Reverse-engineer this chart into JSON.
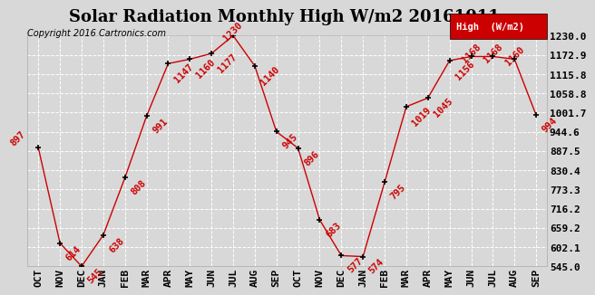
{
  "title": "Solar Radiation Monthly High W/m2 20161011",
  "copyright": "Copyright 2016 Cartronics.com",
  "months": [
    "OCT",
    "NOV",
    "DEC",
    "JAN",
    "FEB",
    "MAR",
    "APR",
    "MAY",
    "JUN",
    "JUL",
    "AUG",
    "SEP",
    "OCT",
    "NOV",
    "DEC",
    "JAN",
    "FEB",
    "MAR",
    "APR",
    "MAY",
    "JUN",
    "JUL",
    "AUG",
    "SEP"
  ],
  "values": [
    897,
    614,
    545,
    638,
    808,
    991,
    1147,
    1160,
    1177,
    1230,
    1140,
    945,
    896,
    683,
    577,
    574,
    795,
    1019,
    1045,
    1156,
    1168,
    1168,
    1160,
    994
  ],
  "ylim": [
    545.0,
    1230.0
  ],
  "yticks": [
    545.0,
    602.1,
    659.2,
    716.2,
    773.3,
    830.4,
    887.5,
    944.6,
    1001.7,
    1058.8,
    1115.8,
    1172.9,
    1230.0
  ],
  "line_color": "#cc0000",
  "marker_color": "black",
  "label_color": "#cc0000",
  "bg_color": "#d8d8d8",
  "legend_bg": "#cc0000",
  "legend_text": "High  (W/m2)",
  "grid_color": "#ffffff",
  "title_fontsize": 13,
  "label_fontsize": 7.5,
  "tick_fontsize": 8,
  "copyright_fontsize": 7
}
